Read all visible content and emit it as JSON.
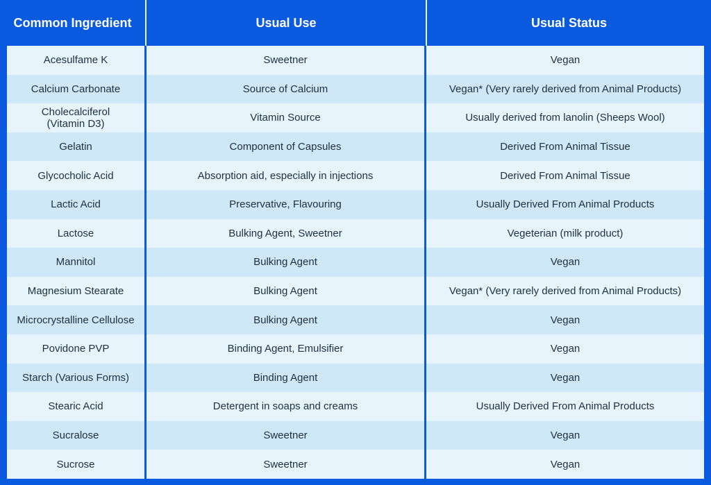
{
  "table": {
    "headers": [
      "Common Ingredient",
      "Usual Use",
      "Usual Status"
    ],
    "rows": [
      [
        "Acesulfame K",
        "Sweetner",
        "Vegan"
      ],
      [
        "Calcium Carbonate",
        "Source of Calcium",
        "Vegan* (Very rarely derived from Animal Products)"
      ],
      [
        "Cholecalciferol\n(Vitamin D3)",
        "Vitamin Source",
        "Usually derived from lanolin (Sheeps Wool)"
      ],
      [
        "Gelatin",
        "Component of Capsules",
        "Derived From Animal Tissue"
      ],
      [
        "Glycocholic Acid",
        "Absorption aid, especially in injections",
        "Derived From Animal Tissue"
      ],
      [
        "Lactic Acid",
        "Preservative, Flavouring",
        "Usually Derived From Animal Products"
      ],
      [
        "Lactose",
        "Bulking Agent, Sweetner",
        "Vegeterian (milk product)"
      ],
      [
        "Mannitol",
        "Bulking Agent",
        "Vegan"
      ],
      [
        "Magnesium Stearate",
        "Bulking Agent",
        "Vegan* (Very rarely derived from Animal Products)"
      ],
      [
        "Microcrystalline Cellulose",
        "Bulking Agent",
        "Vegan"
      ],
      [
        "Povidone PVP",
        "Binding Agent, Emulsifier",
        "Vegan"
      ],
      [
        "Starch (Various Forms)",
        "Binding Agent",
        "Vegan"
      ],
      [
        "Stearic Acid",
        "Detergent in soaps and creams",
        "Usually Derived From Animal Products"
      ],
      [
        "Sucralose",
        "Sweetner",
        "Vegan"
      ],
      [
        "Sucrose",
        "Sweetner",
        "Vegan"
      ]
    ]
  }
}
